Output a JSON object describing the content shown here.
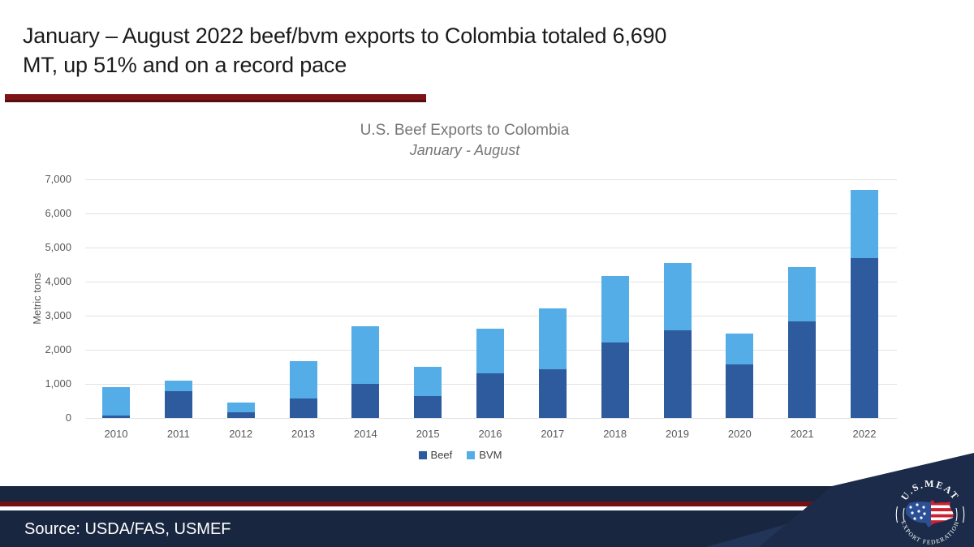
{
  "slide": {
    "title_lines": [
      "January – August 2022 beef/bvm exports to Colombia totaled 6,690",
      "MT, up 51% and on a record pace"
    ]
  },
  "chart_data": {
    "type": "bar",
    "stacked": true,
    "title": "U.S. Beef Exports to Colombia",
    "subtitle": "January - August",
    "xlabel": "",
    "ylabel": "Metric tons",
    "categories": [
      "2010",
      "2011",
      "2012",
      "2013",
      "2014",
      "2015",
      "2016",
      "2017",
      "2018",
      "2019",
      "2020",
      "2021",
      "2022"
    ],
    "series": [
      {
        "name": "Beef",
        "color": "#2e5b9e",
        "values": [
          70,
          780,
          160,
          560,
          990,
          640,
          1320,
          1440,
          2220,
          2570,
          1560,
          2830,
          4690
        ]
      },
      {
        "name": "BVM",
        "color": "#55ade8",
        "values": [
          840,
          320,
          300,
          1100,
          1700,
          850,
          1290,
          1780,
          1950,
          1980,
          920,
          1600,
          2000
        ]
      }
    ],
    "totals": [
      910,
      1100,
      460,
      1660,
      2690,
      1490,
      2610,
      3220,
      4170,
      4550,
      2480,
      4430,
      6690
    ],
    "ylim": [
      0,
      7000
    ],
    "y_tick_step": 1000,
    "y_ticks": [
      "0",
      "1,000",
      "2,000",
      "3,000",
      "4,000",
      "5,000",
      "6,000",
      "7,000"
    ],
    "grid": true,
    "legend_position": "bottom"
  },
  "footer": {
    "source": "Source: USDA/FAS, USMEF",
    "logo": {
      "top_text": "U.S.MEAT",
      "bottom_text": "EXPORT FEDERATION"
    }
  },
  "colors": {
    "beef": "#2e5b9e",
    "bvm": "#55ade8",
    "accent_maroon": "#721114",
    "footer_navy": "#182640",
    "logo_red": "#ce2030",
    "logo_blue": "#2c5095"
  }
}
